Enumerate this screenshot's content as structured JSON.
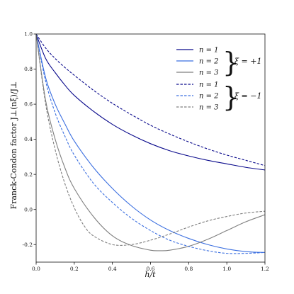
{
  "chart_data": {
    "type": "line",
    "xlabel": "h/t",
    "ylabel": "Franck-Condon factor J⊥(nξ)/J⊥",
    "xlim": [
      0.0,
      1.2
    ],
    "ylim": [
      -0.3,
      1.0
    ],
    "x_ticks": [
      "0.0",
      "0.2",
      "0.4",
      "0.6",
      "0.8",
      "1.0",
      "1.2"
    ],
    "y_ticks": [
      "-0.2",
      "0.0",
      "0.2",
      "0.4",
      "0.6",
      "0.8",
      "1.0"
    ],
    "grid": false,
    "legend_position": "top-right",
    "legend_groups": [
      "ξ = +1",
      "ξ = −1"
    ],
    "colors": {
      "n1": "#0a0a8c",
      "n2": "#3b6fe0",
      "n3": "#7f7f7f"
    },
    "series": [
      {
        "name": "n = 1",
        "xi": "+1",
        "style": "solid",
        "color": "#0a0a8c",
        "x": [
          0.0,
          0.05,
          0.1,
          0.15,
          0.2,
          0.3,
          0.4,
          0.5,
          0.6,
          0.7,
          0.8,
          0.9,
          1.0,
          1.1,
          1.2
        ],
        "y": [
          1.0,
          0.86,
          0.78,
          0.71,
          0.65,
          0.56,
          0.485,
          0.425,
          0.375,
          0.335,
          0.305,
          0.28,
          0.26,
          0.24,
          0.225
        ]
      },
      {
        "name": "n = 2",
        "xi": "+1",
        "style": "solid",
        "color": "#3b6fe0",
        "x": [
          0.0,
          0.05,
          0.1,
          0.15,
          0.2,
          0.3,
          0.4,
          0.5,
          0.6,
          0.7,
          0.8,
          0.9,
          1.0,
          1.1,
          1.2
        ],
        "y": [
          1.0,
          0.75,
          0.6,
          0.49,
          0.39,
          0.24,
          0.12,
          0.02,
          -0.06,
          -0.12,
          -0.165,
          -0.2,
          -0.225,
          -0.24,
          -0.245
        ]
      },
      {
        "name": "n = 3",
        "xi": "+1",
        "style": "solid",
        "color": "#7f7f7f",
        "x": [
          0.0,
          0.05,
          0.1,
          0.15,
          0.2,
          0.3,
          0.4,
          0.5,
          0.6,
          0.65,
          0.7,
          0.8,
          0.9,
          1.0,
          1.1,
          1.2
        ],
        "y": [
          1.0,
          0.62,
          0.4,
          0.24,
          0.12,
          -0.04,
          -0.15,
          -0.205,
          -0.232,
          -0.235,
          -0.232,
          -0.21,
          -0.17,
          -0.12,
          -0.07,
          -0.03
        ]
      },
      {
        "name": "n = 1",
        "xi": "−1",
        "style": "dashed",
        "color": "#0a0a8c",
        "x": [
          0.0,
          0.05,
          0.1,
          0.15,
          0.2,
          0.3,
          0.4,
          0.5,
          0.6,
          0.7,
          0.8,
          0.9,
          1.0,
          1.1,
          1.2
        ],
        "y": [
          1.0,
          0.92,
          0.86,
          0.81,
          0.765,
          0.68,
          0.605,
          0.54,
          0.48,
          0.43,
          0.385,
          0.345,
          0.31,
          0.28,
          0.25
        ]
      },
      {
        "name": "n = 2",
        "xi": "−1",
        "style": "dashed",
        "color": "#3b6fe0",
        "x": [
          0.0,
          0.05,
          0.1,
          0.15,
          0.2,
          0.3,
          0.4,
          0.5,
          0.6,
          0.7,
          0.8,
          0.9,
          1.0,
          1.1,
          1.2
        ],
        "y": [
          1.0,
          0.73,
          0.55,
          0.42,
          0.31,
          0.15,
          0.04,
          -0.05,
          -0.12,
          -0.175,
          -0.21,
          -0.235,
          -0.25,
          -0.25,
          -0.245
        ]
      },
      {
        "name": "n = 3",
        "xi": "−1",
        "style": "dashed",
        "color": "#7f7f7f",
        "x": [
          0.0,
          0.05,
          0.1,
          0.15,
          0.2,
          0.25,
          0.3,
          0.4,
          0.5,
          0.6,
          0.7,
          0.8,
          0.9,
          1.0,
          1.1,
          1.2
        ],
        "y": [
          1.0,
          0.6,
          0.34,
          0.15,
          0.01,
          -0.09,
          -0.15,
          -0.2,
          -0.2,
          -0.175,
          -0.14,
          -0.1,
          -0.065,
          -0.04,
          -0.02,
          -0.01
        ]
      }
    ]
  }
}
